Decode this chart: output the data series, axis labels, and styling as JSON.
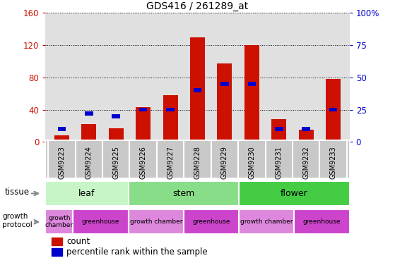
{
  "title": "GDS416 / 261289_at",
  "samples": [
    "GSM9223",
    "GSM9224",
    "GSM9225",
    "GSM9226",
    "GSM9227",
    "GSM9228",
    "GSM9229",
    "GSM9230",
    "GSM9231",
    "GSM9232",
    "GSM9233"
  ],
  "counts": [
    8,
    22,
    17,
    43,
    58,
    130,
    97,
    120,
    28,
    15,
    78
  ],
  "percentiles": [
    10,
    22,
    20,
    25,
    25,
    40,
    45,
    45,
    10,
    10,
    25
  ],
  "ylim_left": [
    0,
    160
  ],
  "ylim_right": [
    0,
    100
  ],
  "yticks_left": [
    0,
    40,
    80,
    120,
    160
  ],
  "yticks_right": [
    0,
    25,
    50,
    75,
    100
  ],
  "tissue_groups": [
    {
      "label": "leaf",
      "start": 0,
      "end": 3,
      "color": "#c8f5c8"
    },
    {
      "label": "stem",
      "start": 3,
      "end": 7,
      "color": "#88dd88"
    },
    {
      "label": "flower",
      "start": 7,
      "end": 11,
      "color": "#44cc44"
    }
  ],
  "protocol_groups": [
    {
      "label": "growth\nchamber",
      "start": 0,
      "end": 1,
      "color": "#dd88dd"
    },
    {
      "label": "greenhouse",
      "start": 1,
      "end": 3,
      "color": "#cc44cc"
    },
    {
      "label": "growth chamber",
      "start": 3,
      "end": 5,
      "color": "#dd88dd"
    },
    {
      "label": "greenhouse",
      "start": 5,
      "end": 7,
      "color": "#cc44cc"
    },
    {
      "label": "growth chamber",
      "start": 7,
      "end": 9,
      "color": "#dd88dd"
    },
    {
      "label": "greenhouse",
      "start": 9,
      "end": 11,
      "color": "#cc44cc"
    }
  ],
  "bar_color_red": "#cc1100",
  "bar_color_blue": "#0000cc",
  "bar_width": 0.55,
  "bg_color": "#ffffff",
  "axis_bg": "#e0e0e0",
  "left_axis_color": "#cc1100",
  "right_axis_color": "#0000cc",
  "tick_bg_color": "#c8c8c8"
}
